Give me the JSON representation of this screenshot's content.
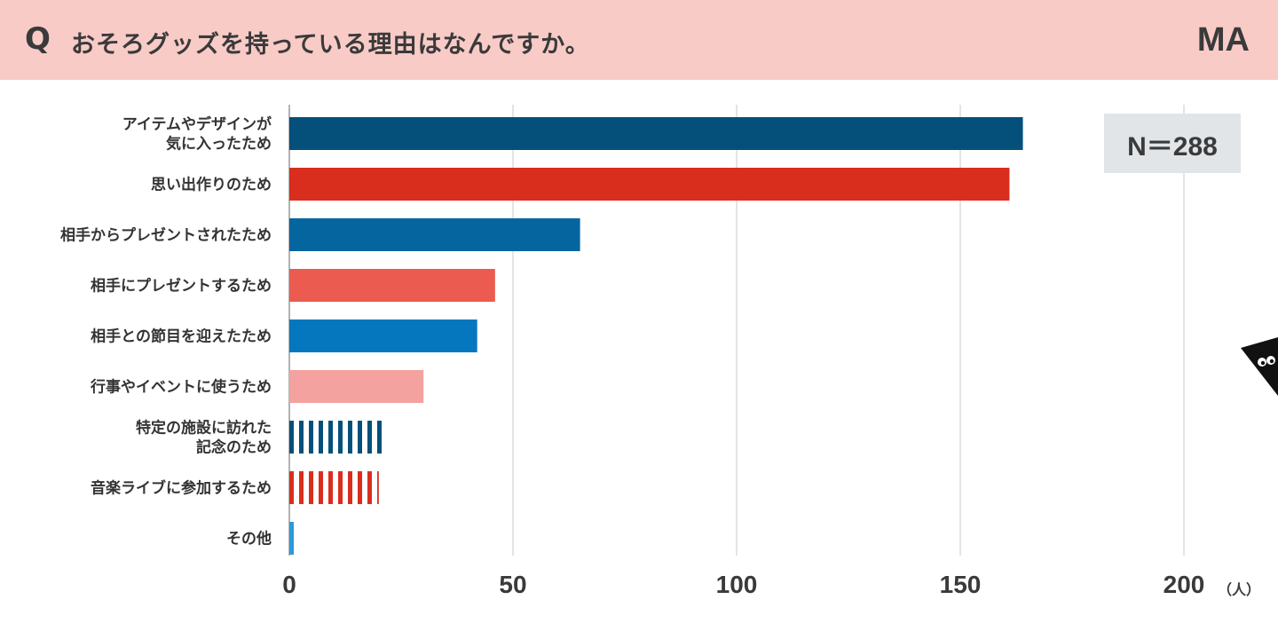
{
  "header": {
    "q_mark": "Q",
    "question": "おそろグッズを持っている理由はなんですか。",
    "answer_type": "MA"
  },
  "sample_size": "N＝288",
  "chart_data": {
    "type": "bar",
    "orientation": "horizontal",
    "categories": [
      [
        "アイテムやデザインが",
        "気に入ったため"
      ],
      [
        "思い出作りのため"
      ],
      [
        "相手からプレゼントされたため"
      ],
      [
        "相手にプレゼントするため"
      ],
      [
        "相手との節目を迎えたため"
      ],
      [
        "行事やイベントに使うため"
      ],
      [
        "特定の施設に訪れた",
        "記念のため"
      ],
      [
        "音楽ライブに参加するため"
      ],
      [
        "その他"
      ]
    ],
    "values": [
      164,
      161,
      65,
      46,
      42,
      30,
      22,
      20,
      1
    ],
    "bar_colors": [
      "#04507b",
      "#d92e1e",
      "#04659f",
      "#eb5b4f",
      "#0577bf",
      "#f3a29f",
      "#04507b",
      "#d92e1e",
      "#2a9adb"
    ],
    "bar_patterns": [
      "solid",
      "solid",
      "solid",
      "solid",
      "solid",
      "solid",
      "striped",
      "striped",
      "solid"
    ],
    "x_ticks": [
      "0",
      "50",
      "100",
      "150",
      "200"
    ],
    "xlim": [
      0,
      200
    ],
    "x_unit": "（人）",
    "grid_color": "#e4e4e4",
    "title": "おそろグッズを持っている理由はなんですか。",
    "xlabel": "",
    "ylabel": ""
  }
}
